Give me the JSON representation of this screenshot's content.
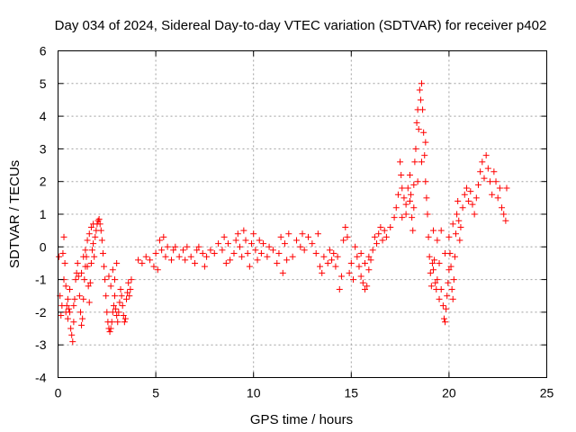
{
  "chart_data": {
    "type": "scatter",
    "title": "Day 034 of 2024, Sidereal Day-to-day VTEC variation (SDTVAR) for receiver p402",
    "xlabel": "GPS time / hours",
    "ylabel": "SDTVAR / TECUs",
    "xlim": [
      0,
      25
    ],
    "ylim": [
      -4,
      6
    ],
    "xticks": [
      0,
      5,
      10,
      15,
      20,
      25
    ],
    "yticks": [
      -4,
      -3,
      -2,
      -1,
      0,
      1,
      2,
      3,
      4,
      5,
      6
    ],
    "grid": true,
    "marker": "+",
    "color": "#ff0000",
    "series": [
      {
        "name": "SDTVAR",
        "points": [
          [
            0.05,
            -0.3
          ],
          [
            0.1,
            -1.5
          ],
          [
            0.15,
            -2.1
          ],
          [
            0.2,
            -1.8
          ],
          [
            0.25,
            -0.2
          ],
          [
            0.3,
            0.3
          ],
          [
            0.35,
            -0.5
          ],
          [
            0.4,
            -1.2
          ],
          [
            0.45,
            -1.8
          ],
          [
            0.5,
            -2.2
          ],
          [
            0.55,
            -1.9
          ],
          [
            0.6,
            -1.3
          ],
          [
            0.65,
            -2.5
          ],
          [
            0.7,
            -2.7
          ],
          [
            0.75,
            -2.9
          ],
          [
            0.8,
            -2.3
          ],
          [
            0.85,
            -1.6
          ],
          [
            0.9,
            -1.0
          ],
          [
            0.95,
            -0.8
          ],
          [
            1.0,
            -0.5
          ],
          [
            1.05,
            -0.9
          ],
          [
            1.1,
            -1.5
          ],
          [
            1.15,
            -2.0
          ],
          [
            1.2,
            -2.4
          ],
          [
            1.25,
            -2.2
          ],
          [
            1.3,
            -1.6
          ],
          [
            1.35,
            -1.0
          ],
          [
            1.4,
            -0.6
          ],
          [
            1.45,
            -0.3
          ],
          [
            1.5,
            -0.6
          ],
          [
            1.55,
            -1.2
          ],
          [
            1.6,
            -1.7
          ],
          [
            1.65,
            -1.1
          ],
          [
            1.7,
            -0.5
          ],
          [
            1.75,
            -0.1
          ],
          [
            1.8,
            0.1
          ],
          [
            1.85,
            -0.3
          ],
          [
            1.9,
            0.3
          ],
          [
            1.95,
            0.5
          ],
          [
            2.0,
            0.7
          ],
          [
            2.05,
            0.8
          ],
          [
            2.1,
            0.85
          ],
          [
            2.15,
            0.7
          ],
          [
            2.2,
            0.5
          ],
          [
            2.25,
            0.2
          ],
          [
            2.3,
            -0.2
          ],
          [
            2.35,
            -0.6
          ],
          [
            2.4,
            -1.0
          ],
          [
            2.45,
            -1.5
          ],
          [
            2.5,
            -2.0
          ],
          [
            2.55,
            -2.3
          ],
          [
            2.6,
            -2.5
          ],
          [
            2.65,
            -2.6
          ],
          [
            2.7,
            -2.5
          ],
          [
            2.75,
            -2.3
          ],
          [
            2.8,
            -2.0
          ],
          [
            2.85,
            -1.8
          ],
          [
            2.9,
            -1.5
          ],
          [
            2.95,
            -1.9
          ],
          [
            3.0,
            -2.1
          ],
          [
            3.05,
            -2.3
          ],
          [
            3.1,
            -2.0
          ],
          [
            3.15,
            -1.7
          ],
          [
            3.2,
            -1.3
          ],
          [
            3.25,
            -1.5
          ],
          [
            3.3,
            -1.8
          ],
          [
            3.35,
            -2.1
          ],
          [
            3.4,
            -2.3
          ],
          [
            3.45,
            -2.2
          ],
          [
            3.5,
            -1.6
          ],
          [
            3.55,
            -1.4
          ],
          [
            3.6,
            -1.1
          ],
          [
            3.65,
            -1.5
          ],
          [
            3.7,
            -1.3
          ],
          [
            3.75,
            -1.0
          ],
          [
            2.6,
            -0.9
          ],
          [
            2.7,
            -1.2
          ],
          [
            2.8,
            -0.7
          ],
          [
            2.9,
            -1.0
          ],
          [
            3.0,
            -0.5
          ],
          [
            1.2,
            -0.8
          ],
          [
            1.3,
            -0.3
          ],
          [
            1.4,
            -0.1
          ],
          [
            1.5,
            0.2
          ],
          [
            1.6,
            0.4
          ],
          [
            1.7,
            0.6
          ],
          [
            1.8,
            0.7
          ],
          [
            0.3,
            -1.0
          ],
          [
            0.4,
            -2.0
          ],
          [
            0.5,
            -1.6
          ],
          [
            0.6,
            -2.0
          ],
          [
            0.8,
            -1.8
          ],
          [
            4.1,
            -0.4
          ],
          [
            4.3,
            -0.5
          ],
          [
            4.5,
            -0.3
          ],
          [
            4.7,
            -0.4
          ],
          [
            4.9,
            -0.6
          ],
          [
            5.0,
            -0.2
          ],
          [
            5.1,
            -0.7
          ],
          [
            5.2,
            0.2
          ],
          [
            5.3,
            -0.1
          ],
          [
            5.4,
            0.3
          ],
          [
            5.5,
            -0.3
          ],
          [
            5.6,
            0.0
          ],
          [
            5.8,
            -0.4
          ],
          [
            5.9,
            -0.1
          ],
          [
            6.0,
            0.0
          ],
          [
            6.2,
            -0.3
          ],
          [
            6.4,
            -0.1
          ],
          [
            6.5,
            -0.4
          ],
          [
            6.6,
            0.0
          ],
          [
            6.8,
            -0.3
          ],
          [
            7.0,
            -0.5
          ],
          [
            7.1,
            -0.1
          ],
          [
            7.2,
            0.0
          ],
          [
            7.4,
            -0.2
          ],
          [
            7.5,
            -0.6
          ],
          [
            7.6,
            -0.3
          ],
          [
            7.8,
            -0.1
          ],
          [
            8.0,
            -0.2
          ],
          [
            8.2,
            0.1
          ],
          [
            8.4,
            -0.1
          ],
          [
            8.5,
            0.3
          ],
          [
            8.6,
            -0.5
          ],
          [
            8.7,
            0.1
          ],
          [
            8.8,
            -0.4
          ],
          [
            9.0,
            -0.2
          ],
          [
            9.1,
            0.2
          ],
          [
            9.2,
            0.4
          ],
          [
            9.3,
            0.0
          ],
          [
            9.4,
            -0.3
          ],
          [
            9.5,
            0.5
          ],
          [
            9.6,
            0.2
          ],
          [
            9.7,
            -0.2
          ],
          [
            9.8,
            -0.6
          ],
          [
            9.9,
            0.1
          ],
          [
            10.0,
            0.4
          ],
          [
            10.1,
            -0.1
          ],
          [
            10.2,
            -0.4
          ],
          [
            10.3,
            0.2
          ],
          [
            10.4,
            -0.2
          ],
          [
            10.5,
            0.1
          ],
          [
            10.7,
            -0.3
          ],
          [
            10.8,
            0.0
          ],
          [
            11.0,
            -0.1
          ],
          [
            11.2,
            -0.5
          ],
          [
            11.3,
            -0.2
          ],
          [
            11.4,
            0.3
          ],
          [
            11.5,
            -0.8
          ],
          [
            11.6,
            0.1
          ],
          [
            11.7,
            -0.4
          ],
          [
            11.8,
            0.4
          ],
          [
            12.0,
            -0.3
          ],
          [
            12.2,
            0.2
          ],
          [
            12.4,
            0.0
          ],
          [
            12.5,
            0.4
          ],
          [
            12.6,
            -0.1
          ],
          [
            12.8,
            0.3
          ],
          [
            13.0,
            0.1
          ],
          [
            13.2,
            -0.2
          ],
          [
            13.3,
            0.4
          ],
          [
            13.4,
            -0.6
          ],
          [
            13.5,
            -0.8
          ],
          [
            13.6,
            -0.3
          ],
          [
            13.8,
            -0.5
          ],
          [
            13.9,
            -0.1
          ],
          [
            14.0,
            -0.4
          ],
          [
            14.1,
            -0.2
          ],
          [
            14.2,
            -0.6
          ],
          [
            14.3,
            -0.3
          ],
          [
            14.4,
            -1.3
          ],
          [
            14.5,
            -0.9
          ],
          [
            14.6,
            0.2
          ],
          [
            14.7,
            0.6
          ],
          [
            14.8,
            0.3
          ],
          [
            14.9,
            -0.8
          ],
          [
            15.0,
            -0.5
          ],
          [
            15.1,
            -1.0
          ],
          [
            15.2,
            0.0
          ],
          [
            15.3,
            -0.3
          ],
          [
            15.4,
            -0.6
          ],
          [
            15.5,
            -0.9
          ],
          [
            15.6,
            -1.1
          ],
          [
            15.7,
            -1.3
          ],
          [
            15.8,
            -1.2
          ],
          [
            15.9,
            -0.7
          ],
          [
            15.5,
            -0.2
          ],
          [
            15.7,
            -0.5
          ],
          [
            15.9,
            -0.3
          ],
          [
            16.0,
            -0.4
          ],
          [
            16.1,
            -0.1
          ],
          [
            16.2,
            0.3
          ],
          [
            16.3,
            0.1
          ],
          [
            16.4,
            0.4
          ],
          [
            16.5,
            0.6
          ],
          [
            16.6,
            0.2
          ],
          [
            16.7,
            0.5
          ],
          [
            16.8,
            0.3
          ],
          [
            17.0,
            0.6
          ],
          [
            17.2,
            0.9
          ],
          [
            17.3,
            1.2
          ],
          [
            17.4,
            1.6
          ],
          [
            17.5,
            2.6
          ],
          [
            17.55,
            2.2
          ],
          [
            17.6,
            1.8
          ],
          [
            17.7,
            1.5
          ],
          [
            17.8,
            1.3
          ],
          [
            17.9,
            1.8
          ],
          [
            18.0,
            2.2
          ],
          [
            18.05,
            1.6
          ],
          [
            18.1,
            0.9
          ],
          [
            18.15,
            0.5
          ],
          [
            18.2,
            1.9
          ],
          [
            18.25,
            2.6
          ],
          [
            18.3,
            3.0
          ],
          [
            18.35,
            3.8
          ],
          [
            18.4,
            4.2
          ],
          [
            18.45,
            3.6
          ],
          [
            18.5,
            4.8
          ],
          [
            18.55,
            4.5
          ],
          [
            18.6,
            5.0
          ],
          [
            18.65,
            4.2
          ],
          [
            18.7,
            3.5
          ],
          [
            18.75,
            2.8
          ],
          [
            18.8,
            2.0
          ],
          [
            18.85,
            1.5
          ],
          [
            18.9,
            1.0
          ],
          [
            18.95,
            0.3
          ],
          [
            19.0,
            -0.3
          ],
          [
            19.05,
            -0.8
          ],
          [
            19.1,
            -1.2
          ],
          [
            19.15,
            -0.5
          ],
          [
            19.2,
            0.5
          ],
          [
            19.25,
            -0.4
          ],
          [
            19.3,
            -1.1
          ],
          [
            19.35,
            -1.3
          ],
          [
            19.4,
            -1.0
          ],
          [
            19.5,
            -0.5
          ],
          [
            19.6,
            -1.3
          ],
          [
            19.7,
            -1.8
          ],
          [
            19.75,
            -2.2
          ],
          [
            19.8,
            -2.3
          ],
          [
            19.85,
            -1.9
          ],
          [
            19.9,
            -1.5
          ],
          [
            19.95,
            -1.1
          ],
          [
            20.0,
            -0.7
          ],
          [
            20.05,
            -0.2
          ],
          [
            20.1,
            -0.6
          ],
          [
            20.15,
            -1.3
          ],
          [
            20.2,
            -1.6
          ],
          [
            20.25,
            -1.0
          ],
          [
            20.3,
            -0.3
          ],
          [
            20.35,
            0.4
          ],
          [
            20.4,
            1.0
          ],
          [
            20.45,
            1.4
          ],
          [
            20.5,
            0.8
          ],
          [
            20.55,
            0.2
          ],
          [
            20.6,
            0.6
          ],
          [
            20.7,
            1.2
          ],
          [
            20.8,
            1.6
          ],
          [
            20.9,
            1.8
          ],
          [
            21.0,
            1.4
          ],
          [
            21.1,
            1.7
          ],
          [
            21.2,
            1.3
          ],
          [
            21.3,
            1.0
          ],
          [
            21.4,
            1.5
          ],
          [
            21.5,
            1.9
          ],
          [
            21.6,
            2.3
          ],
          [
            21.7,
            2.6
          ],
          [
            21.8,
            2.1
          ],
          [
            21.9,
            2.8
          ],
          [
            22.0,
            2.4
          ],
          [
            22.1,
            2.0
          ],
          [
            22.2,
            1.6
          ],
          [
            22.3,
            2.3
          ],
          [
            22.4,
            2.0
          ],
          [
            22.5,
            1.5
          ],
          [
            22.6,
            1.8
          ],
          [
            22.7,
            1.2
          ],
          [
            22.8,
            1.0
          ],
          [
            22.9,
            0.8
          ],
          [
            22.95,
            1.8
          ],
          [
            19.4,
            0.2
          ],
          [
            19.6,
            0.5
          ],
          [
            19.8,
            -0.2
          ],
          [
            20.0,
            0.3
          ],
          [
            20.2,
            0.7
          ],
          [
            19.2,
            -0.7
          ],
          [
            19.5,
            -1.6
          ],
          [
            17.6,
            0.9
          ],
          [
            17.8,
            1.0
          ],
          [
            18.0,
            1.4
          ],
          [
            18.2,
            1.2
          ],
          [
            18.4,
            2.0
          ],
          [
            18.6,
            2.6
          ],
          [
            18.8,
            3.2
          ]
        ]
      }
    ]
  }
}
